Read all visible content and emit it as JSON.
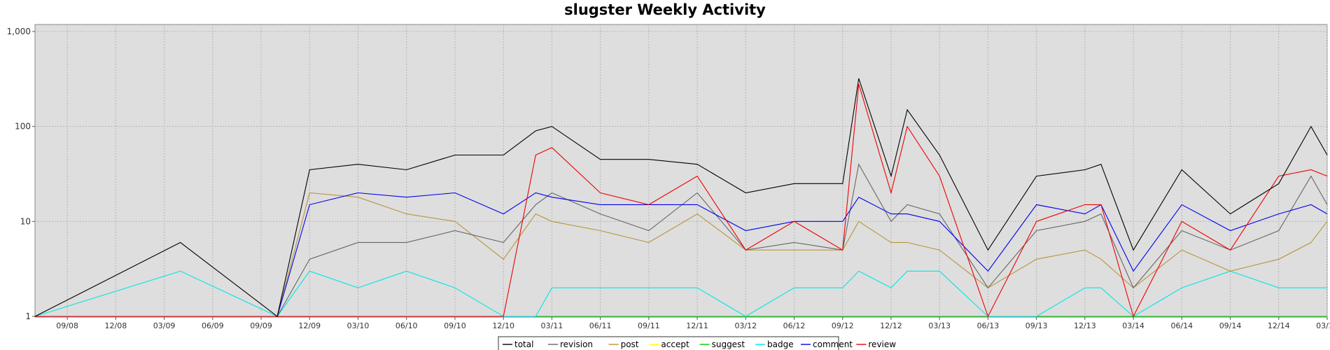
{
  "chart_data": {
    "type": "line",
    "title": "slugster Weekly Activity",
    "xlabel": "",
    "ylabel": "",
    "y_scale": "log",
    "ylim": [
      1,
      1000
    ],
    "y_ticks": [
      1,
      10,
      100,
      1000
    ],
    "y_tick_labels": [
      "1",
      "10",
      "100",
      "1,000"
    ],
    "x_range": [
      "2008-07",
      "2015-03"
    ],
    "x_tick_labels": [
      "09/08",
      "12/08",
      "03/09",
      "06/09",
      "09/09",
      "12/09",
      "03/10",
      "06/10",
      "09/10",
      "12/10",
      "03/11",
      "06/11",
      "09/11",
      "12/11",
      "03/12",
      "06/12",
      "09/12",
      "12/12",
      "03/13",
      "06/13",
      "09/13",
      "12/13",
      "03/14",
      "06/14",
      "09/14",
      "12/14",
      "03/15"
    ],
    "grid": true,
    "legend_position": "bottom",
    "x": [
      "2009-04",
      "2009-10",
      "2009-12",
      "2010-03",
      "2010-06",
      "2010-09",
      "2010-12",
      "2011-02",
      "2011-03",
      "2011-06",
      "2011-09",
      "2011-12",
      "2012-03",
      "2012-06",
      "2012-09",
      "2012-10",
      "2012-12",
      "2013-01",
      "2013-03",
      "2013-06",
      "2013-09",
      "2013-12",
      "2014-01",
      "2014-03",
      "2014-06",
      "2014-09",
      "2014-12",
      "2015-02",
      "2015-03"
    ],
    "series": [
      {
        "name": "total",
        "color": "#000000",
        "values": [
          6,
          1,
          35,
          40,
          35,
          50,
          50,
          90,
          100,
          45,
          45,
          40,
          20,
          25,
          25,
          320,
          30,
          150,
          50,
          5,
          30,
          35,
          40,
          5,
          35,
          12,
          25,
          100,
          50
        ]
      },
      {
        "name": "revision",
        "color": "#666666",
        "values": [
          1,
          1,
          4,
          6,
          6,
          8,
          6,
          15,
          20,
          12,
          8,
          20,
          5,
          6,
          5,
          40,
          10,
          15,
          12,
          2,
          8,
          10,
          12,
          2,
          8,
          5,
          8,
          30,
          15
        ]
      },
      {
        "name": "post",
        "color": "#b8953a",
        "values": [
          1,
          1,
          20,
          18,
          12,
          10,
          4,
          12,
          10,
          8,
          6,
          12,
          5,
          5,
          5,
          10,
          6,
          6,
          5,
          2,
          4,
          5,
          4,
          2,
          5,
          3,
          4,
          6,
          10
        ]
      },
      {
        "name": "accept",
        "color": "#ffff00",
        "values": [
          1,
          1,
          1,
          1,
          1,
          1,
          1,
          1,
          1,
          1,
          1,
          1,
          1,
          1,
          1,
          1,
          1,
          1,
          1,
          1,
          1,
          1,
          1,
          1,
          1,
          1,
          1,
          1,
          1
        ]
      },
      {
        "name": "suggest",
        "color": "#00cc00",
        "values": [
          1,
          1,
          1,
          1,
          1,
          1,
          1,
          1,
          1,
          1,
          1,
          1,
          1,
          1,
          1,
          1,
          1,
          1,
          1,
          1,
          1,
          1,
          1,
          1,
          1,
          1,
          1,
          1,
          1
        ]
      },
      {
        "name": "badge",
        "color": "#00e5e5",
        "values": [
          3,
          1,
          3,
          2,
          3,
          2,
          1,
          1,
          2,
          2,
          2,
          2,
          1,
          2,
          2,
          3,
          2,
          3,
          3,
          1,
          1,
          2,
          2,
          1,
          2,
          3,
          2,
          2,
          2
        ]
      },
      {
        "name": "comment",
        "color": "#0000ee",
        "values": [
          1,
          1,
          15,
          20,
          18,
          20,
          12,
          20,
          18,
          15,
          15,
          15,
          8,
          10,
          10,
          18,
          12,
          12,
          10,
          3,
          15,
          12,
          15,
          3,
          15,
          8,
          12,
          15,
          12
        ]
      },
      {
        "name": "review",
        "color": "#ee0000",
        "values": [
          1,
          1,
          1,
          1,
          1,
          1,
          1,
          50,
          60,
          20,
          15,
          30,
          5,
          10,
          5,
          280,
          20,
          100,
          30,
          1,
          10,
          15,
          15,
          1,
          10,
          5,
          30,
          35,
          30
        ]
      }
    ]
  }
}
